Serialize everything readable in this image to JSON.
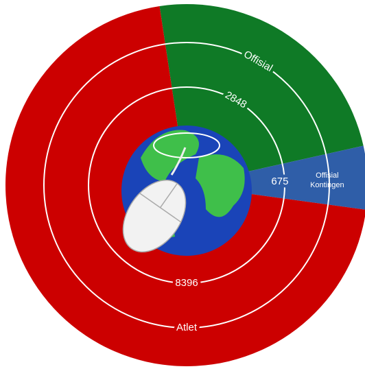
{
  "chart_data": {
    "type": "pie",
    "categories": [
      "Atlet",
      "Offisial",
      "Offisial Kontingen"
    ],
    "values": [
      8396,
      2848,
      675
    ],
    "colors": [
      "#cc0000",
      "#0f7a26",
      "#2f5ea8"
    ]
  }
}
